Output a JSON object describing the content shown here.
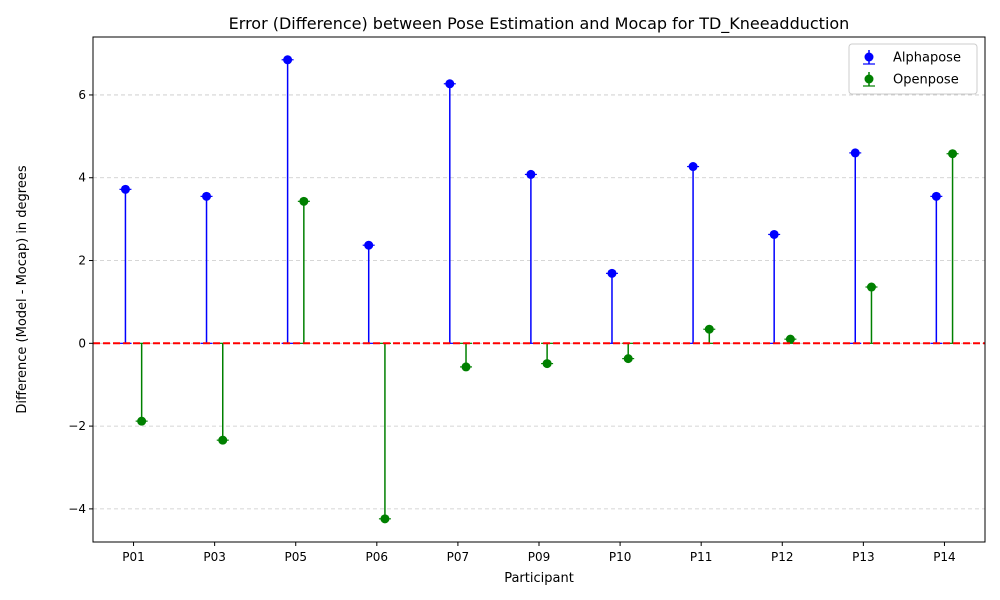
{
  "chart_data": {
    "type": "scatter",
    "title": "Error (Difference) between Pose Estimation and Mocap for TD_Kneeadduction",
    "xlabel": "Participant",
    "ylabel": "Difference (Model - Mocap) in degrees",
    "categories": [
      "P01",
      "P03",
      "P05",
      "P06",
      "P07",
      "P09",
      "P10",
      "P11",
      "P12",
      "P13",
      "P14"
    ],
    "ylim": [
      -4.8,
      7.4
    ],
    "yticks": [
      -4,
      -2,
      0,
      2,
      4,
      6
    ],
    "ytick_labels": [
      "−4",
      "−2",
      "0",
      "2",
      "4",
      "6"
    ],
    "grid": "y-dashed",
    "legend_position": "top-right",
    "reference_line": {
      "y": 0,
      "color": "#ff0000",
      "style": "dashed"
    },
    "series": [
      {
        "name": "Alphapose",
        "color": "#0000ff",
        "values": [
          3.72,
          3.55,
          6.85,
          2.37,
          6.27,
          4.08,
          1.69,
          4.27,
          2.63,
          4.6,
          3.55
        ]
      },
      {
        "name": "Openpose",
        "color": "#008000",
        "values": [
          -1.88,
          -2.34,
          3.43,
          -4.24,
          -0.57,
          -0.49,
          -0.37,
          0.34,
          0.1,
          1.36,
          4.58
        ]
      }
    ]
  }
}
